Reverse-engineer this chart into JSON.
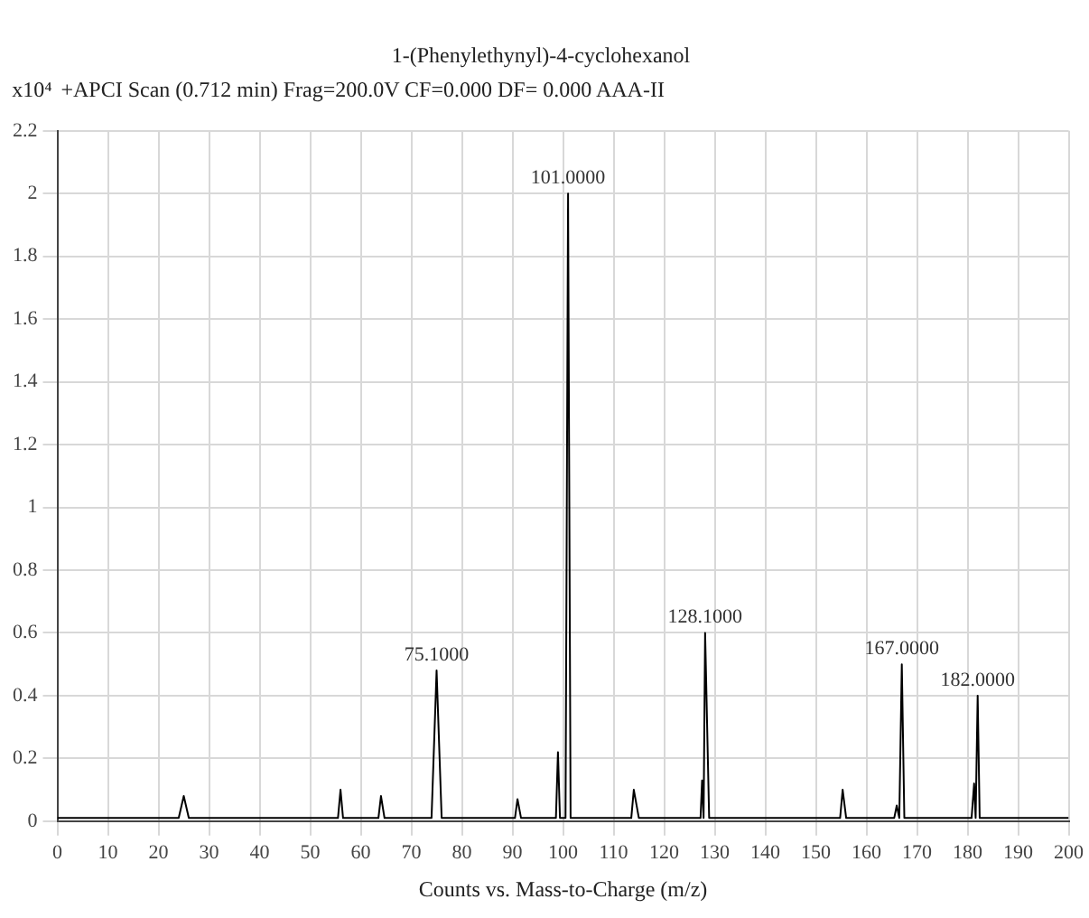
{
  "chart_data": {
    "type": "line",
    "title": "1-(Phenylethynyl)-4-cyclohexanol",
    "subtitle": "+APCI Scan (0.712 min) Frag=200.0V CF=0.000 DF= 0.000 AAA-II",
    "xlabel": "Counts vs. Mass-to-Charge (m/z)",
    "ylabel": "x10⁴",
    "x": [
      0,
      24,
      25,
      26,
      55.5,
      56,
      56.5,
      63.5,
      64,
      64.7,
      74,
      75,
      76,
      90.5,
      91,
      91.7,
      98.6,
      99,
      99.4,
      100.5,
      101,
      101.5,
      113.5,
      114,
      115,
      127.2,
      127.5,
      127.8,
      128.1,
      128.9,
      154.8,
      155.3,
      156,
      165.5,
      166,
      166.5,
      167,
      167.5,
      180.8,
      181.3,
      181.6,
      182,
      182.4,
      200
    ],
    "series": [
      {
        "color": "#000000",
        "values": [
          0.01,
          0.01,
          0.08,
          0.01,
          0.01,
          0.1,
          0.01,
          0.01,
          0.08,
          0.01,
          0.01,
          0.48,
          0.01,
          0.01,
          0.07,
          0.01,
          0.01,
          0.22,
          0.01,
          0.01,
          2.0,
          0.01,
          0.01,
          0.1,
          0.01,
          0.01,
          0.13,
          0.01,
          0.6,
          0.01,
          0.01,
          0.1,
          0.01,
          0.01,
          0.05,
          0.01,
          0.5,
          0.01,
          0.01,
          0.12,
          0.01,
          0.4,
          0.01,
          0.01
        ]
      }
    ],
    "annotations": [
      {
        "text": "75.1000",
        "x": 75,
        "y": 0.48
      },
      {
        "text": "101.0000",
        "x": 101,
        "y": 2.0
      },
      {
        "text": "128.1000",
        "x": 128.1,
        "y": 0.6
      },
      {
        "text": "167.0000",
        "x": 167,
        "y": 0.5
      },
      {
        "text": "182.0000",
        "x": 182,
        "y": 0.4
      }
    ],
    "xlim": [
      0,
      200
    ],
    "xticks": [
      0,
      10,
      20,
      30,
      40,
      50,
      60,
      70,
      80,
      90,
      100,
      110,
      120,
      130,
      140,
      150,
      160,
      170,
      180,
      190,
      200
    ],
    "ylim": [
      0,
      2.2
    ],
    "yticks": [
      0,
      0.2,
      0.4,
      0.6,
      0.8,
      1,
      1.2,
      1.4,
      1.6,
      1.8,
      2,
      2.2
    ],
    "grid": true,
    "legend": false,
    "marker": "none",
    "line_style": "solid"
  }
}
